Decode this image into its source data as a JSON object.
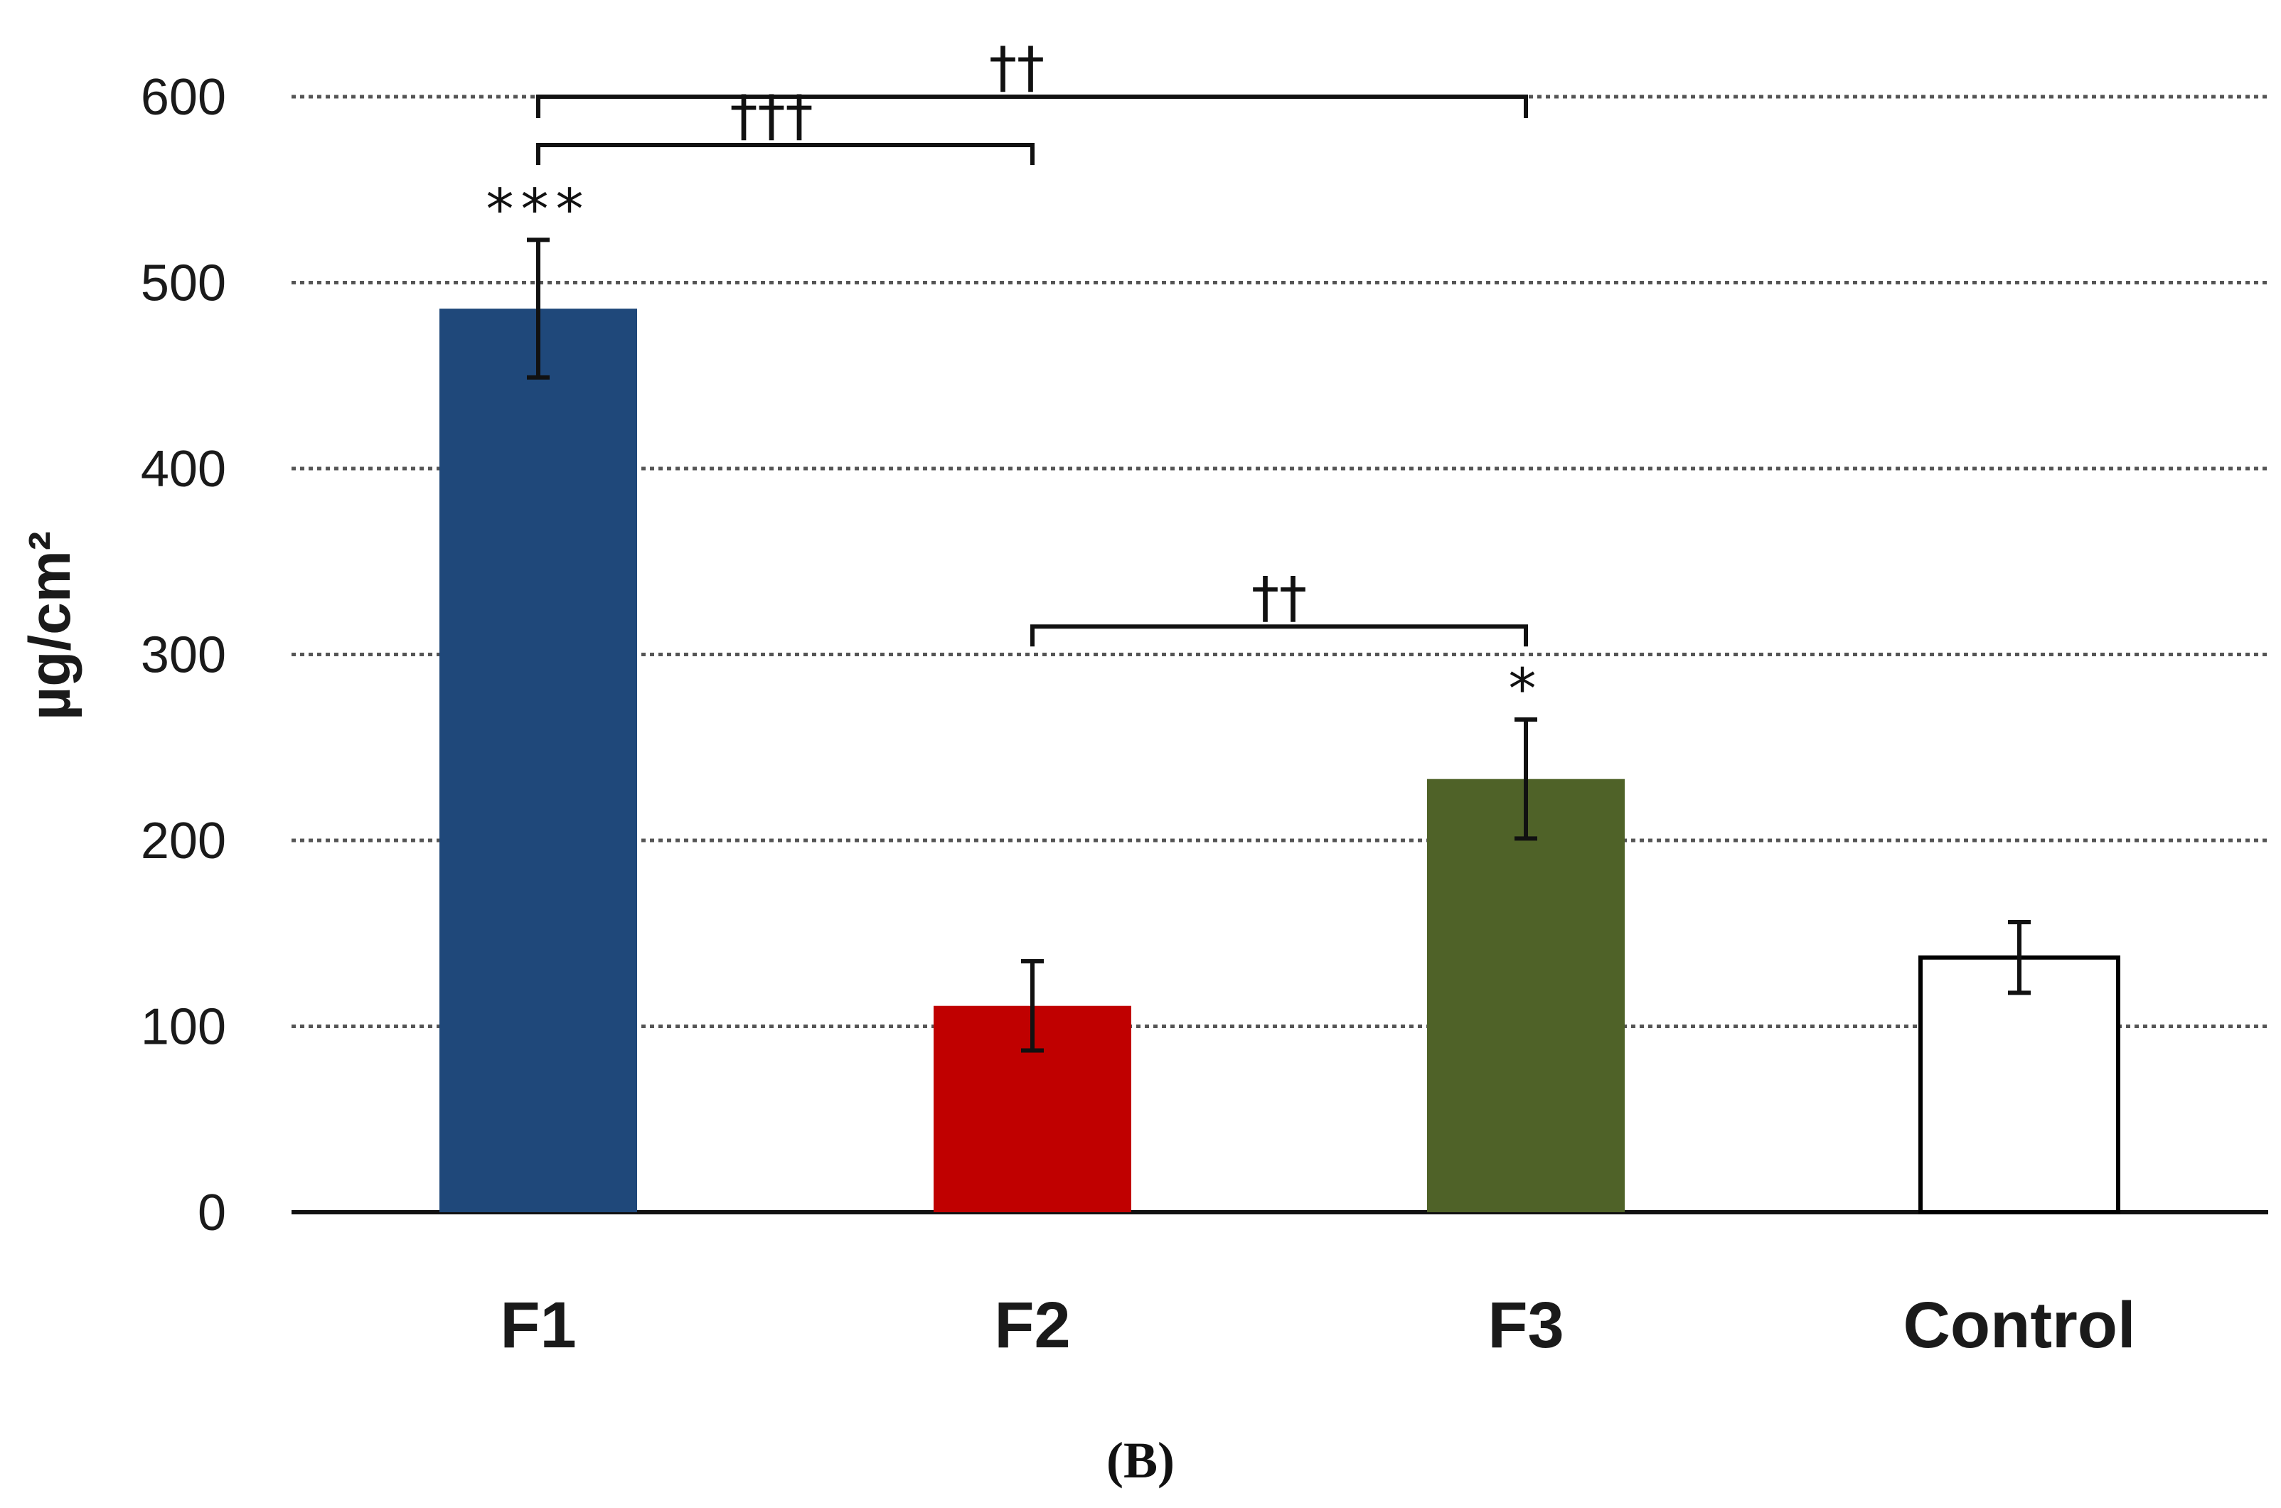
{
  "chart_data": {
    "type": "bar",
    "title": "",
    "xlabel": "",
    "ylabel": "µg/cm²",
    "ylim": [
      0,
      600
    ],
    "yticks": [
      0,
      100,
      200,
      300,
      400,
      500,
      600
    ],
    "grid": "horizontal dotted",
    "categories": [
      "F1",
      "F2",
      "F3",
      "Control"
    ],
    "values": [
      486,
      111,
      233,
      137
    ],
    "errors": [
      37,
      24,
      32,
      19
    ],
    "colors": [
      "#1f487a",
      "#c00000",
      "#4f6228",
      "#ffffff"
    ],
    "bar_outline": "#000000",
    "annotations_above_bars": [
      "***",
      "",
      "*",
      ""
    ],
    "brackets": [
      {
        "from": "F1",
        "to": "F3",
        "label": "††"
      },
      {
        "from": "F1",
        "to": "F2",
        "label": "†††"
      },
      {
        "from": "F2",
        "to": "F3",
        "label": "††"
      }
    ]
  },
  "panel_label": "(B)"
}
